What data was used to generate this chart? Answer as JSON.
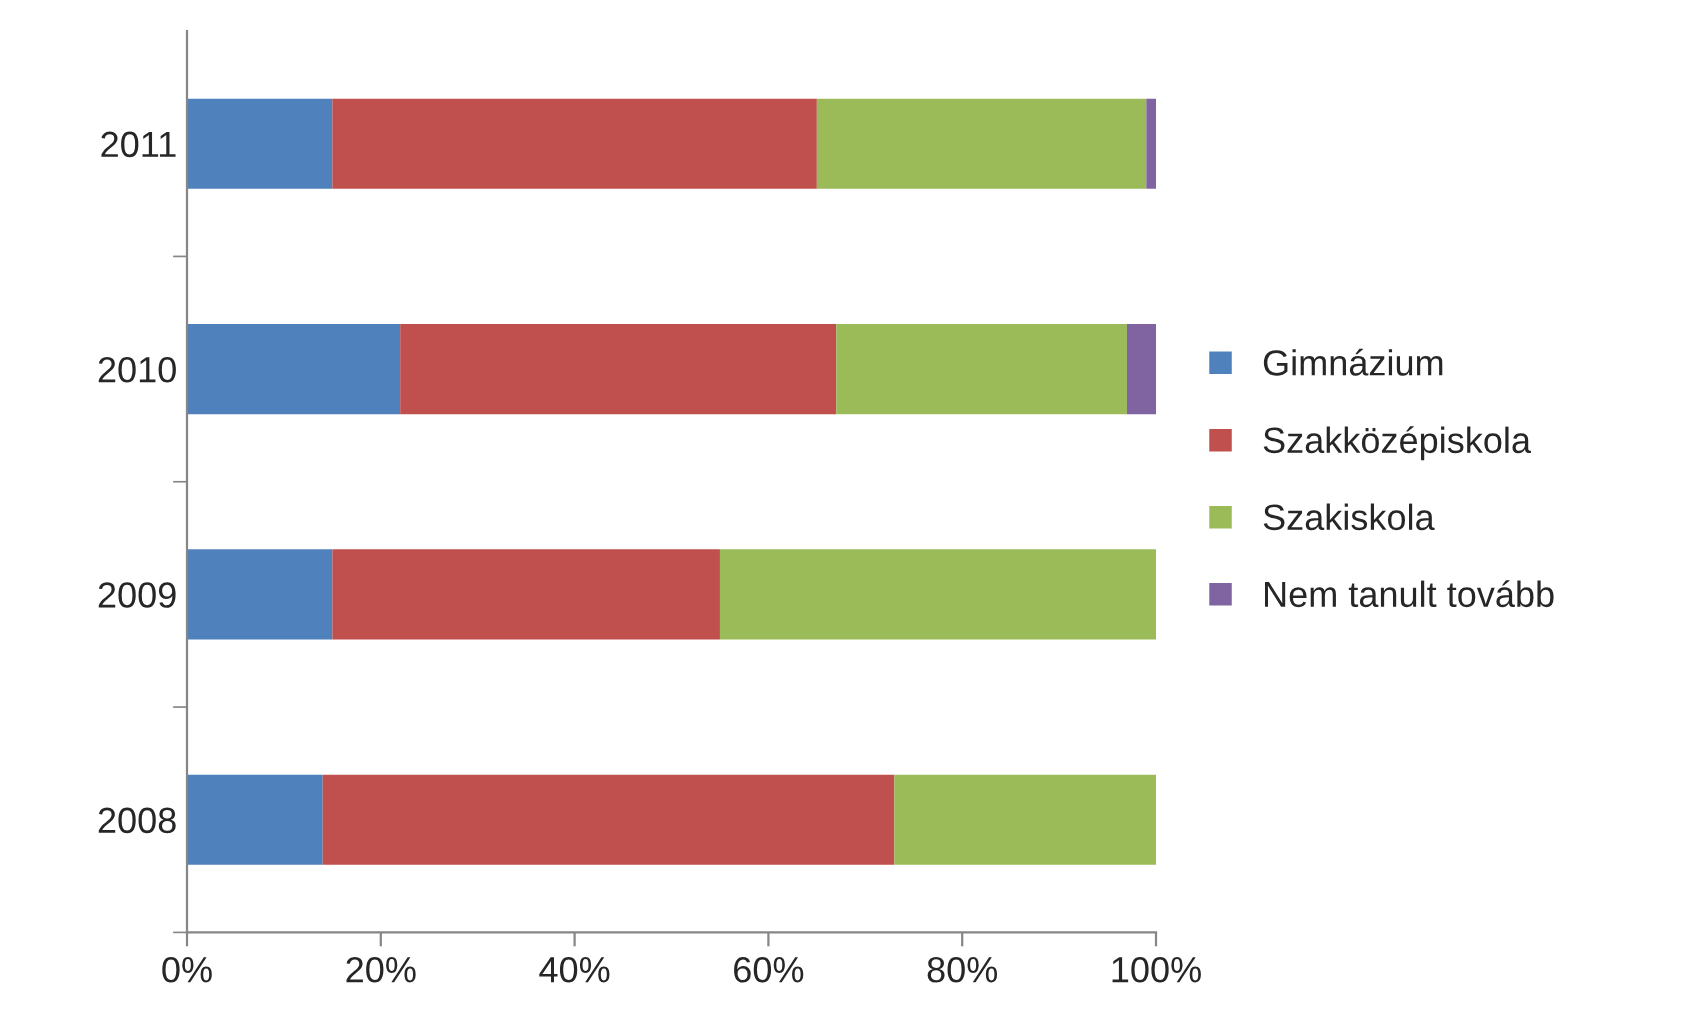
{
  "chart_data": {
    "type": "bar",
    "orientation": "horizontal",
    "stacked": true,
    "categories": [
      "2011",
      "2010",
      "2009",
      "2008"
    ],
    "series": [
      {
        "name": "Gimnázium",
        "color": "#4f81bd",
        "values": [
          15,
          22,
          15,
          14
        ]
      },
      {
        "name": "Szakközépiskola",
        "color": "#c0504d",
        "values": [
          50,
          45,
          40,
          59
        ]
      },
      {
        "name": "Szakiskola",
        "color": "#9bbb59",
        "values": [
          34,
          30,
          45,
          27
        ]
      },
      {
        "name": "Nem tanult tovább",
        "color": "#8064a2",
        "values": [
          1,
          3,
          null,
          null
        ]
      }
    ],
    "xlim": [
      0,
      100
    ],
    "xticks": [
      {
        "value": 0,
        "label": "0%"
      },
      {
        "value": 20,
        "label": "20%"
      },
      {
        "value": 40,
        "label": "40%"
      },
      {
        "value": 60,
        "label": "60%"
      },
      {
        "value": 80,
        "label": "80%"
      },
      {
        "value": 100,
        "label": "100%"
      }
    ],
    "grid": false,
    "legend": "right"
  }
}
